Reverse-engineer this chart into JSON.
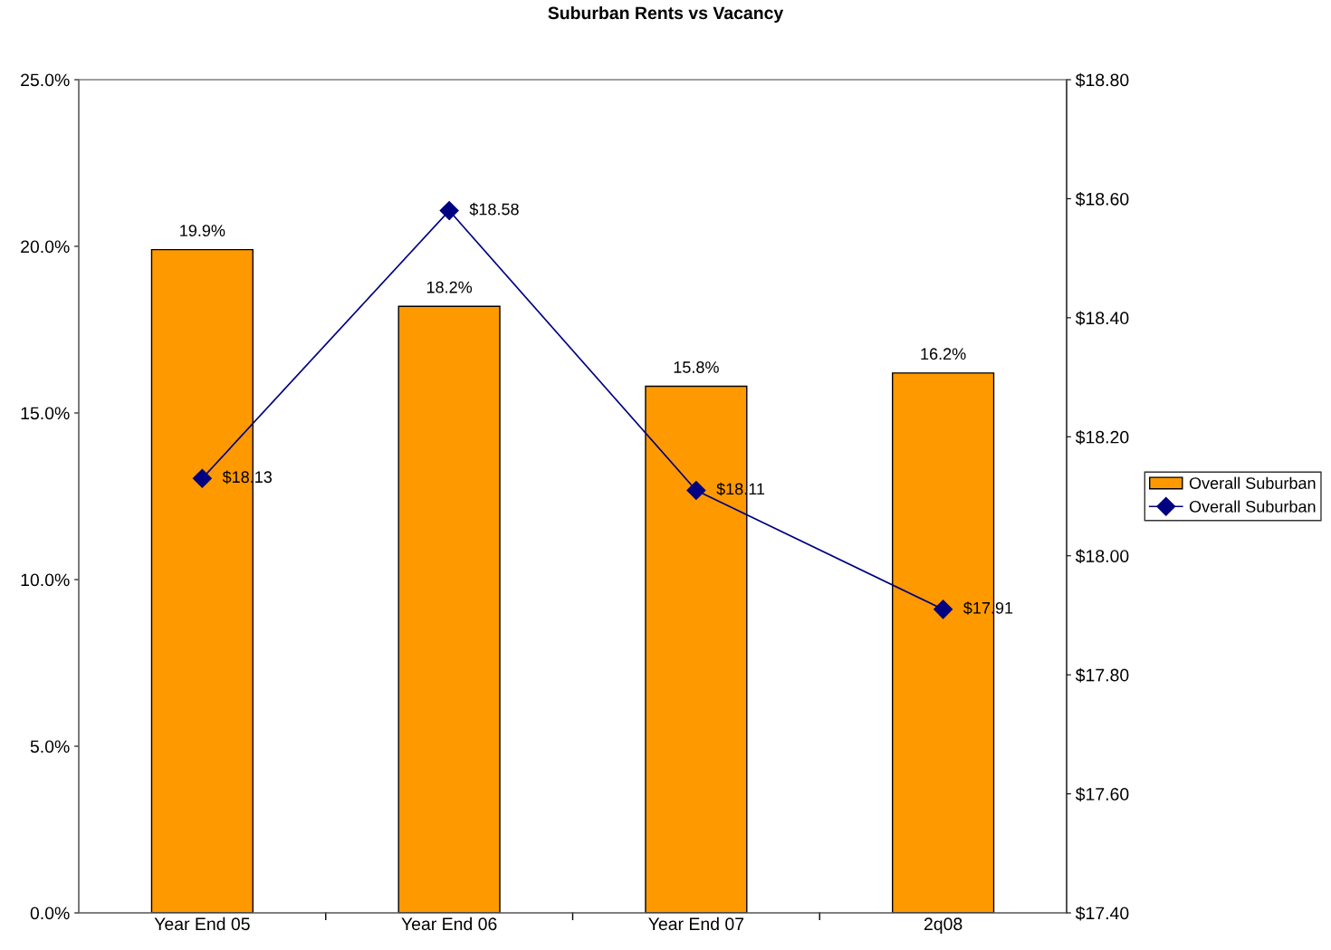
{
  "chart_data": {
    "type": "bar",
    "title": "Suburban Rents vs Vacancy",
    "categories": [
      "Year End 05",
      "Year End 06",
      "Year End 07",
      "2q08"
    ],
    "series": [
      {
        "name": "Overall Suburban",
        "color": "#ff9900",
        "values": [
          19.9,
          18.2,
          15.8,
          16.2
        ],
        "value_labels": [
          "19.9%",
          "18.2%",
          "15.8%",
          "16.2%"
        ]
      },
      {
        "name": "Overall Suburban",
        "type": "line",
        "axis": "y2",
        "color": "#000080",
        "marker": "diamond",
        "line_style": "solid",
        "values": [
          18.13,
          18.58,
          18.11,
          17.91
        ],
        "value_labels": [
          "$18.13",
          "$18.58",
          "$18.11",
          "$17.91"
        ]
      }
    ],
    "ylim": [
      0,
      25
    ],
    "yticks": [
      {
        "value": 0,
        "label": "0.0%"
      },
      {
        "value": 5,
        "label": "5.0%"
      },
      {
        "value": 10,
        "label": "10.0%"
      },
      {
        "value": 15,
        "label": "15.0%"
      },
      {
        "value": 20,
        "label": "20.0%"
      },
      {
        "value": 25,
        "label": "25.0%"
      }
    ],
    "y2lim": [
      17.4,
      18.8
    ],
    "y2ticks": [
      {
        "value": 17.4,
        "label": "$17.40"
      },
      {
        "value": 17.6,
        "label": "$17.60"
      },
      {
        "value": 17.8,
        "label": "$17.80"
      },
      {
        "value": 18.0,
        "label": "$18.00"
      },
      {
        "value": 18.2,
        "label": "$18.20"
      },
      {
        "value": 18.4,
        "label": "$18.40"
      },
      {
        "value": 18.6,
        "label": "$18.60"
      },
      {
        "value": 18.8,
        "label": "$18.80"
      }
    ],
    "grid": false,
    "legend": "right"
  }
}
